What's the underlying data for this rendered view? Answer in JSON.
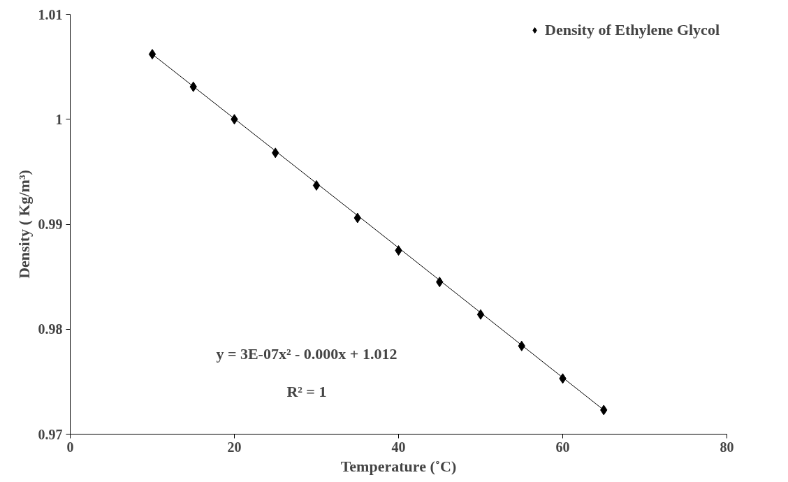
{
  "chart_data": {
    "type": "scatter",
    "xlabel": "Temperature (˚C)",
    "ylabel": "Density ( Kg/m³)",
    "xlim": [
      0,
      80
    ],
    "xticks": [
      0,
      20,
      40,
      60,
      80
    ],
    "ylim": [
      0.97,
      1.01
    ],
    "yticks": [
      0.97,
      0.98,
      0.99,
      1,
      1.01
    ],
    "grid": false,
    "legend": "top right",
    "marker": "diamond",
    "series": [
      {
        "name": "Density of Ethylene Glycol",
        "color": "#000000",
        "x": [
          10,
          15,
          20,
          25,
          30,
          35,
          40,
          45,
          50,
          55,
          60,
          65
        ],
        "values": [
          1.0062,
          1.0031,
          1.0,
          0.9968,
          0.9937,
          0.9906,
          0.9875,
          0.9845,
          0.9814,
          0.9784,
          0.9753,
          0.9723
        ]
      },
      {
        "type": "line",
        "marker": "none",
        "color": "#000000",
        "x": [
          10,
          37.5,
          65
        ],
        "values": [
          1.0062,
          0.9893,
          0.9723
        ]
      }
    ],
    "annotations": [
      "y = 3E-07x² - 0.000x + 1.012",
      "R² = 1"
    ]
  }
}
